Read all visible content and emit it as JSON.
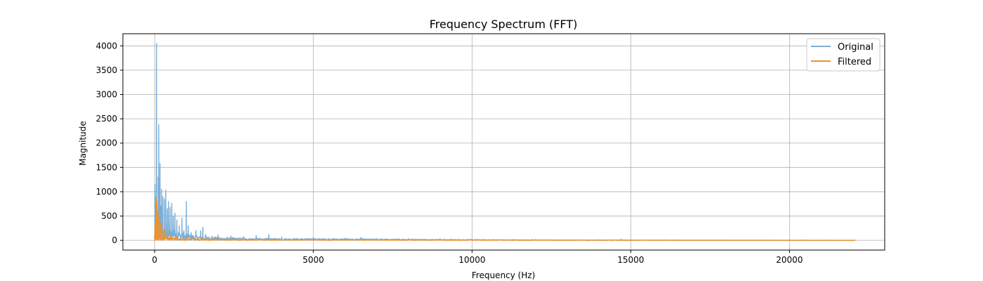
{
  "chart_data": {
    "type": "line",
    "title": "Frequency Spectrum (FFT)",
    "xlabel": "Frequency (Hz)",
    "ylabel": "Magnitude",
    "xlim": [
      -1000,
      23000
    ],
    "ylim": [
      -200,
      4250
    ],
    "xticks": [
      0,
      5000,
      10000,
      15000,
      20000
    ],
    "xtick_labels": [
      "0",
      "5000",
      "10000",
      "15000",
      "20000"
    ],
    "yticks": [
      0,
      500,
      1000,
      1500,
      2000,
      2500,
      3000,
      3500,
      4000
    ],
    "ytick_labels": [
      "0",
      "500",
      "1000",
      "1500",
      "2000",
      "2500",
      "3000",
      "3500",
      "4000"
    ],
    "grid": true,
    "legend_position": "top-right",
    "series": [
      {
        "name": "Original",
        "color": "#7aaed8",
        "peaks": [
          [
            0,
            0
          ],
          [
            10,
            1150
          ],
          [
            30,
            300
          ],
          [
            60,
            4050
          ],
          [
            80,
            600
          ],
          [
            110,
            1300
          ],
          [
            130,
            2380
          ],
          [
            150,
            800
          ],
          [
            170,
            1580
          ],
          [
            190,
            700
          ],
          [
            220,
            1050
          ],
          [
            260,
            900
          ],
          [
            310,
            850
          ],
          [
            350,
            1040
          ],
          [
            400,
            650
          ],
          [
            440,
            800
          ],
          [
            490,
            680
          ],
          [
            540,
            760
          ],
          [
            590,
            500
          ],
          [
            640,
            560
          ],
          [
            700,
            420
          ],
          [
            780,
            300
          ],
          [
            860,
            460
          ],
          [
            920,
            200
          ],
          [
            1000,
            800
          ],
          [
            1060,
            300
          ],
          [
            1150,
            160
          ],
          [
            1300,
            200
          ],
          [
            1450,
            200
          ],
          [
            1520,
            270
          ],
          [
            1600,
            120
          ],
          [
            1800,
            90
          ],
          [
            2000,
            110
          ],
          [
            2400,
            90
          ],
          [
            2800,
            80
          ],
          [
            3200,
            100
          ],
          [
            3600,
            120
          ],
          [
            4000,
            70
          ],
          [
            5000,
            55
          ],
          [
            6000,
            45
          ],
          [
            6500,
            60
          ],
          [
            7000,
            40
          ],
          [
            8000,
            35
          ],
          [
            9000,
            30
          ],
          [
            10000,
            25
          ],
          [
            12000,
            18
          ],
          [
            14000,
            14
          ],
          [
            15800,
            10
          ],
          [
            18000,
            6
          ],
          [
            20000,
            5
          ],
          [
            22050,
            3
          ]
        ],
        "envelope": [
          [
            0,
            150
          ],
          [
            500,
            260
          ],
          [
            1000,
            130
          ],
          [
            1500,
            90
          ],
          [
            2000,
            65
          ],
          [
            3000,
            45
          ],
          [
            4000,
            40
          ],
          [
            5000,
            40
          ],
          [
            6000,
            35
          ],
          [
            7000,
            30
          ],
          [
            8000,
            28
          ],
          [
            9000,
            22
          ],
          [
            10000,
            18
          ],
          [
            12000,
            12
          ],
          [
            15000,
            8
          ],
          [
            15800,
            6
          ],
          [
            18000,
            4
          ],
          [
            20000,
            3
          ],
          [
            22050,
            2
          ]
        ]
      },
      {
        "name": "Filtered",
        "color": "#f0922b",
        "peaks": [
          [
            0,
            0
          ],
          [
            10,
            300
          ],
          [
            40,
            900
          ],
          [
            70,
            800
          ],
          [
            100,
            600
          ],
          [
            140,
            500
          ],
          [
            180,
            360
          ],
          [
            230,
            300
          ],
          [
            300,
            230
          ],
          [
            400,
            150
          ],
          [
            500,
            110
          ],
          [
            700,
            80
          ],
          [
            1000,
            60
          ],
          [
            1500,
            40
          ],
          [
            2000,
            35
          ],
          [
            3000,
            28
          ],
          [
            4000,
            25
          ],
          [
            5000,
            22
          ],
          [
            7000,
            18
          ],
          [
            9000,
            20
          ],
          [
            10000,
            15
          ],
          [
            12000,
            12
          ],
          [
            14700,
            28
          ],
          [
            15800,
            8
          ],
          [
            18000,
            4
          ],
          [
            20000,
            3
          ],
          [
            22050,
            2
          ]
        ],
        "envelope": [
          [
            0,
            100
          ],
          [
            500,
            55
          ],
          [
            1000,
            38
          ],
          [
            2000,
            28
          ],
          [
            4000,
            22
          ],
          [
            6000,
            18
          ],
          [
            8000,
            16
          ],
          [
            10000,
            14
          ],
          [
            12000,
            10
          ],
          [
            15800,
            7
          ],
          [
            18000,
            3
          ],
          [
            22050,
            2
          ]
        ]
      }
    ]
  }
}
